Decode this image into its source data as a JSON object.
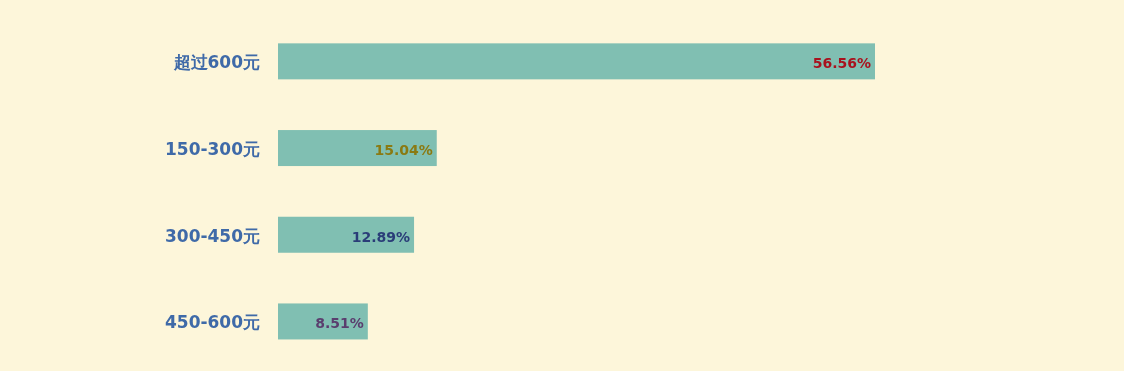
{
  "chart_data": {
    "type": "bar",
    "orientation": "horizontal",
    "categories": [
      "超过600元",
      "150-300元",
      "300-450元",
      "450-600元"
    ],
    "values": [
      56.56,
      15.04,
      12.89,
      8.51
    ],
    "value_labels": [
      "56.56%",
      "15.04%",
      "12.89%",
      "8.51%"
    ],
    "color": "#80bfb2"
  }
}
